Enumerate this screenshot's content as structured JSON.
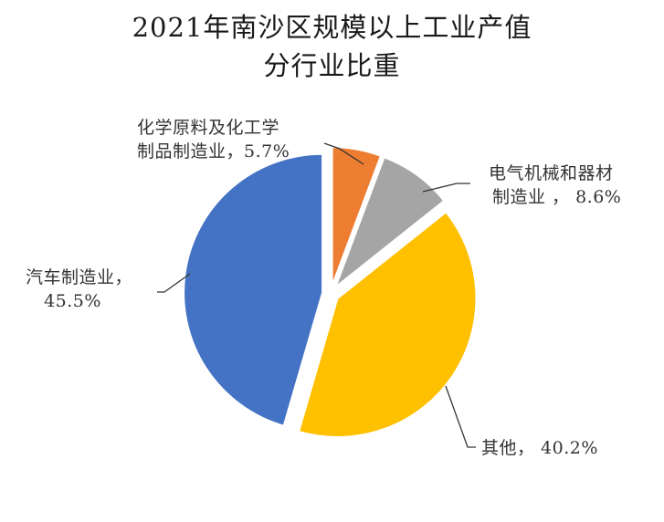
{
  "title": {
    "line1": "2021年南沙区规模以上工业产值",
    "line2": "分行业比重"
  },
  "labels": {
    "chem": {
      "line1": "化学原料及化工学",
      "line2": "制品制造业，5.7%"
    },
    "elec": {
      "line1": "电气机械和器材",
      "line2": "制造业 ， 8.6%"
    },
    "auto": {
      "line1": "汽车制造业，",
      "line2": "45.5%"
    },
    "other": {
      "line1": "其他， 40.2%"
    }
  },
  "chart_data": {
    "type": "pie",
    "title": "2021年南沙区规模以上工业产值分行业比重",
    "exploded": true,
    "start_angle_deg": 0,
    "direction": "clockwise",
    "slices": [
      {
        "name": "化学原料及化工学制品制造业",
        "value": 5.7,
        "color": "#ED7D31"
      },
      {
        "name": "电气机械和器材制造业",
        "value": 8.6,
        "color": "#A5A5A5"
      },
      {
        "name": "其他",
        "value": 40.2,
        "color": "#FFC000"
      },
      {
        "name": "汽车制造业",
        "value": 45.5,
        "color": "#4472C4"
      }
    ],
    "legend": "none",
    "data_labels": "category, percentage with leader lines"
  }
}
